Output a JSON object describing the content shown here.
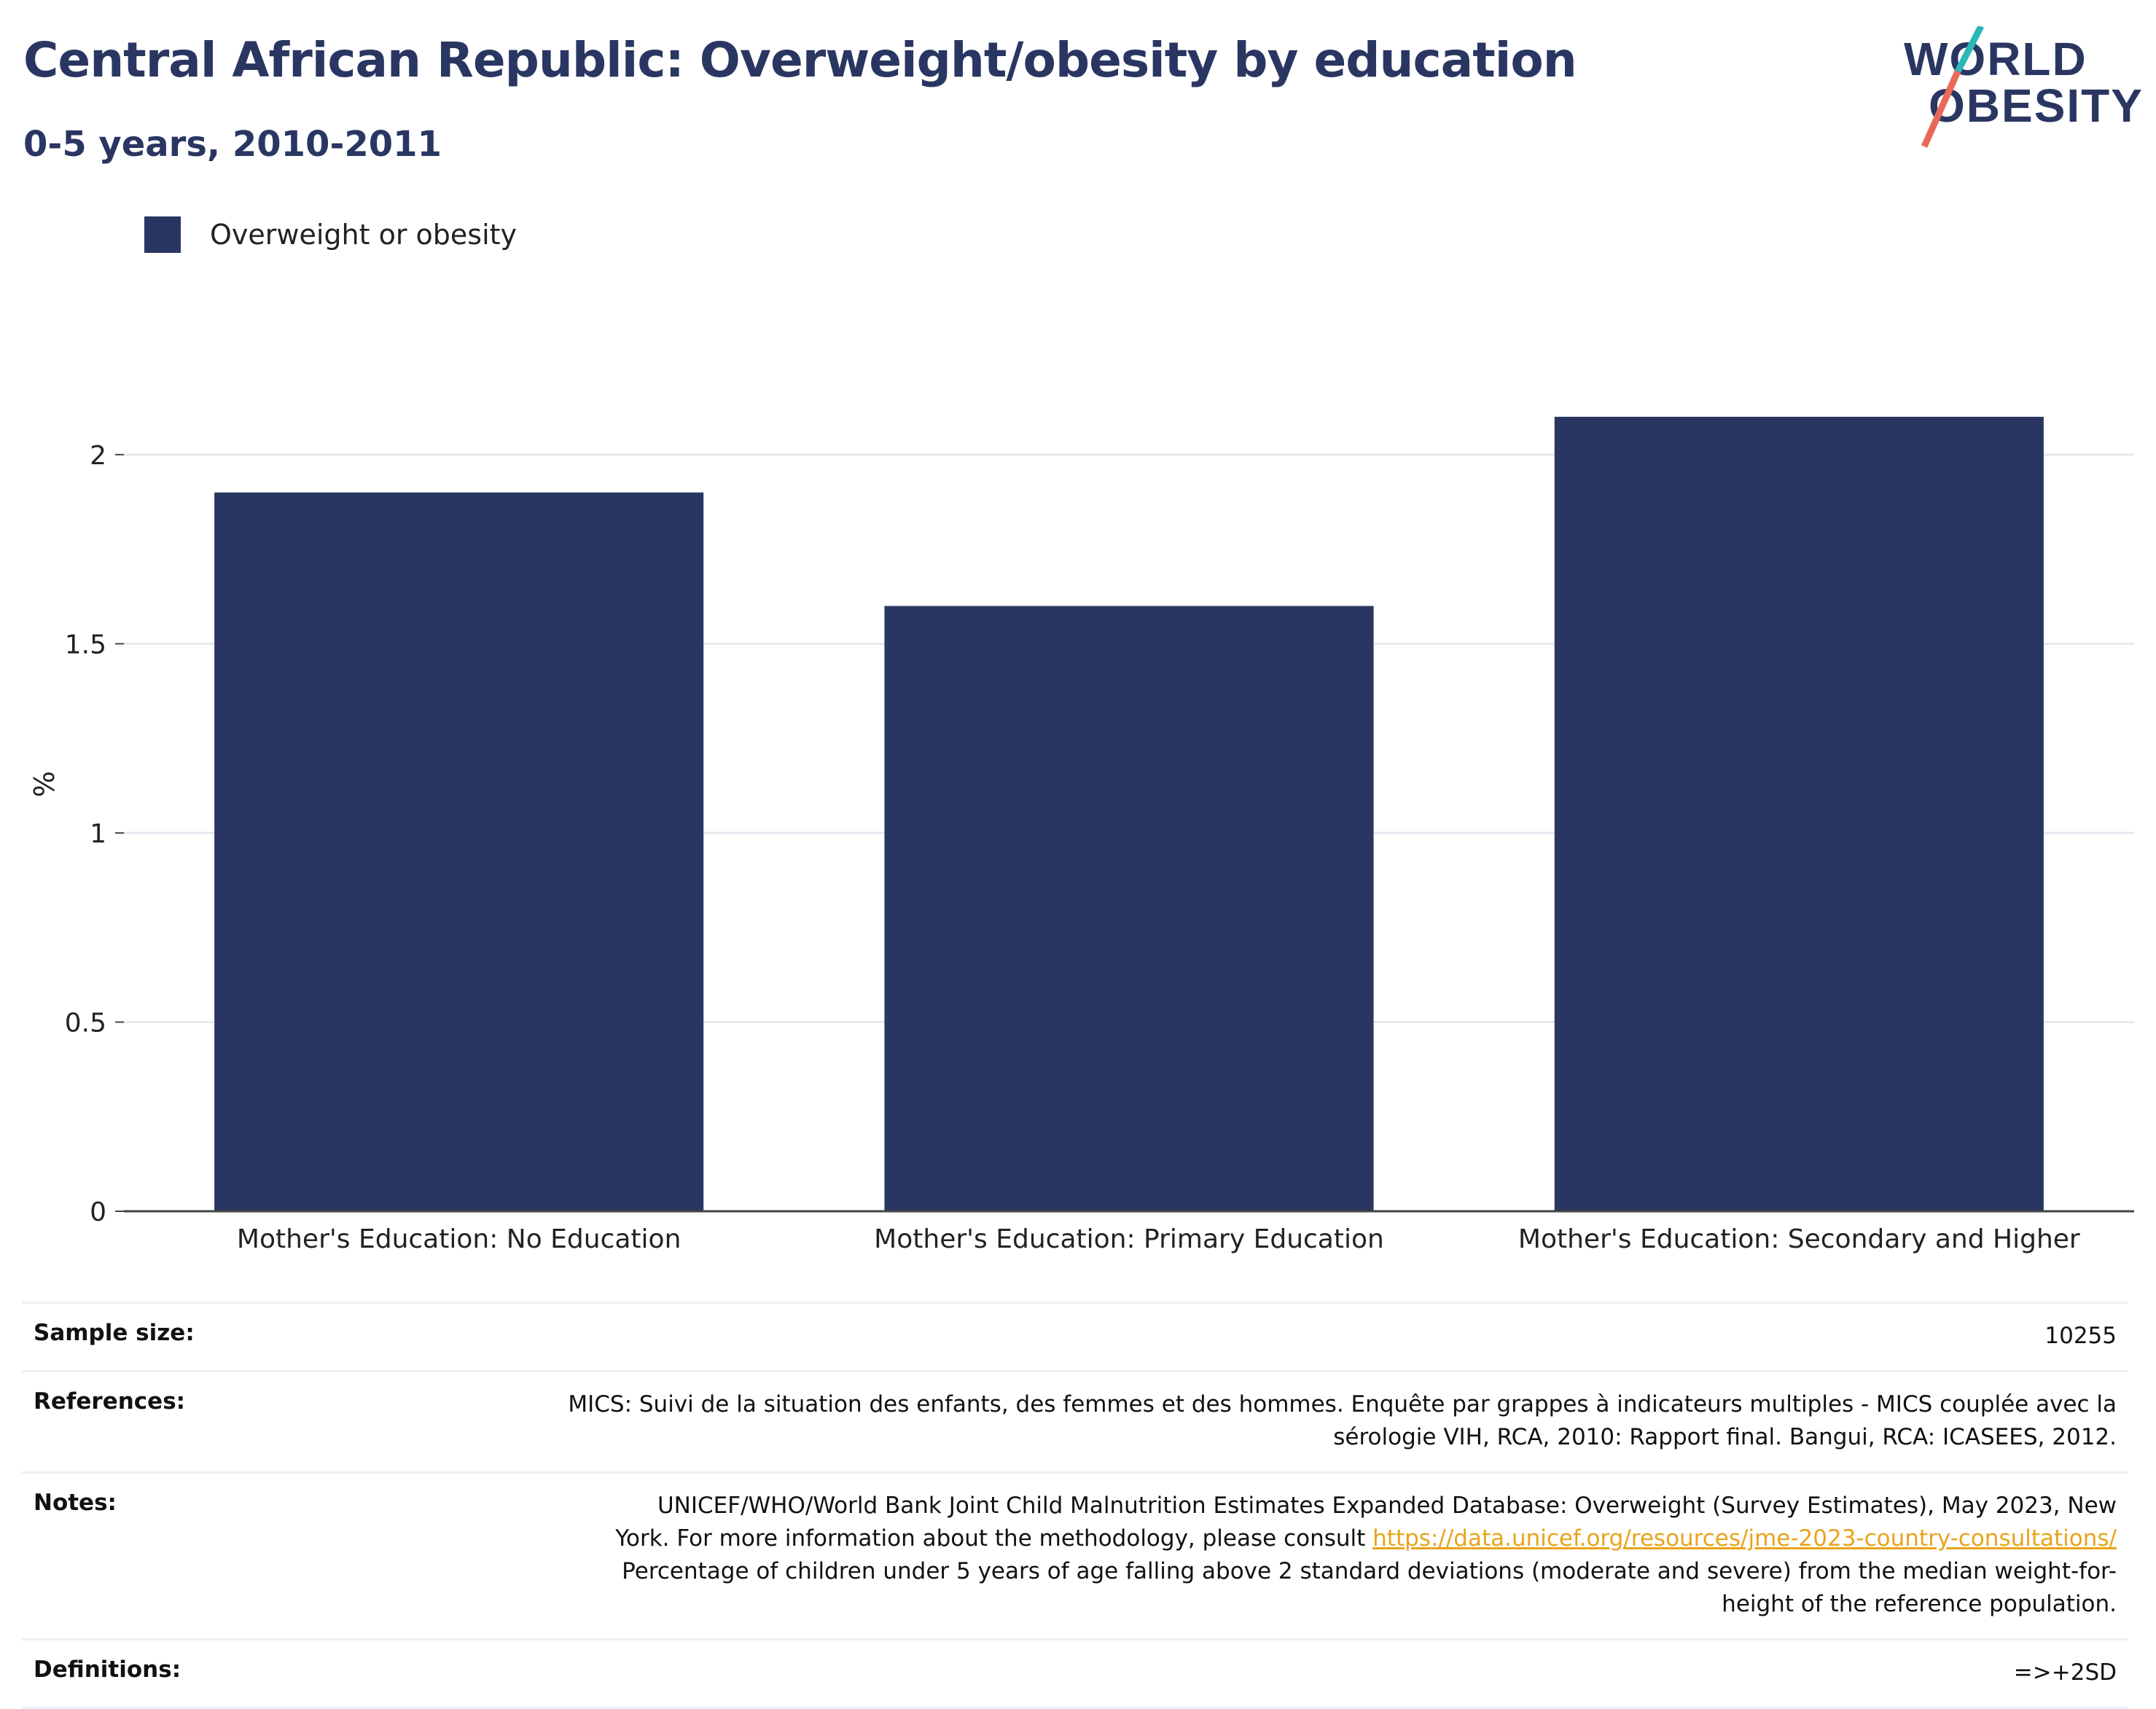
{
  "title": "Central African Republic: Overweight/obesity by education",
  "subtitle": "0-5 years, 2010-2011",
  "logo": {
    "line1": "WORLD",
    "line2": "OBESITY"
  },
  "colors": {
    "bar": "#2a3662",
    "title": "#2a3662",
    "link": "#e8a41b",
    "logo_slash_top": "#2bb8b8",
    "logo_slash_bottom": "#e8695a"
  },
  "chart_data": {
    "type": "bar",
    "categories": [
      "Mother's Education: No Education",
      "Mother's Education: Primary Education",
      "Mother's Education: Secondary and Higher"
    ],
    "series": [
      {
        "name": "Overweight or obesity",
        "values": [
          1.9,
          1.6,
          2.1
        ]
      }
    ],
    "ylabel": "%",
    "xlabel": "",
    "ylim": [
      0,
      2.2
    ],
    "yticks": [
      0,
      0.5,
      1,
      1.5,
      2
    ],
    "ytick_labels": [
      "0",
      "0.5",
      "1",
      "1.5",
      "2"
    ],
    "grid": true,
    "legend_position": "top-left"
  },
  "table": {
    "sample_size": {
      "label": "Sample size:",
      "value": "10255"
    },
    "references": {
      "label": "References:",
      "line1": "MICS: Suivi de la situation des enfants, des femmes et des hommes. Enquête par grappes à indicateurs multiples - MICS couplée avec la",
      "line2": "sérologie VIH, RCA, 2010: Rapport final. Bangui, RCA: ICASEES, 2012."
    },
    "notes": {
      "label": "Notes:",
      "line1": "UNICEF/WHO/World Bank Joint Child Malnutrition Estimates Expanded Database: Overweight (Survey Estimates), May 2023, New",
      "line2": "York. For more information about the methodology, please consult",
      "link": "https://data.unicef.org/resources/jme-2023-country-consultations/",
      "line3": "Percentage of children under 5 years of age falling above 2 standard deviations (moderate and severe) from the median weight-for-",
      "line4": "height of the reference population."
    },
    "definitions": {
      "label": "Definitions:",
      "value": "=>+2SD"
    }
  }
}
